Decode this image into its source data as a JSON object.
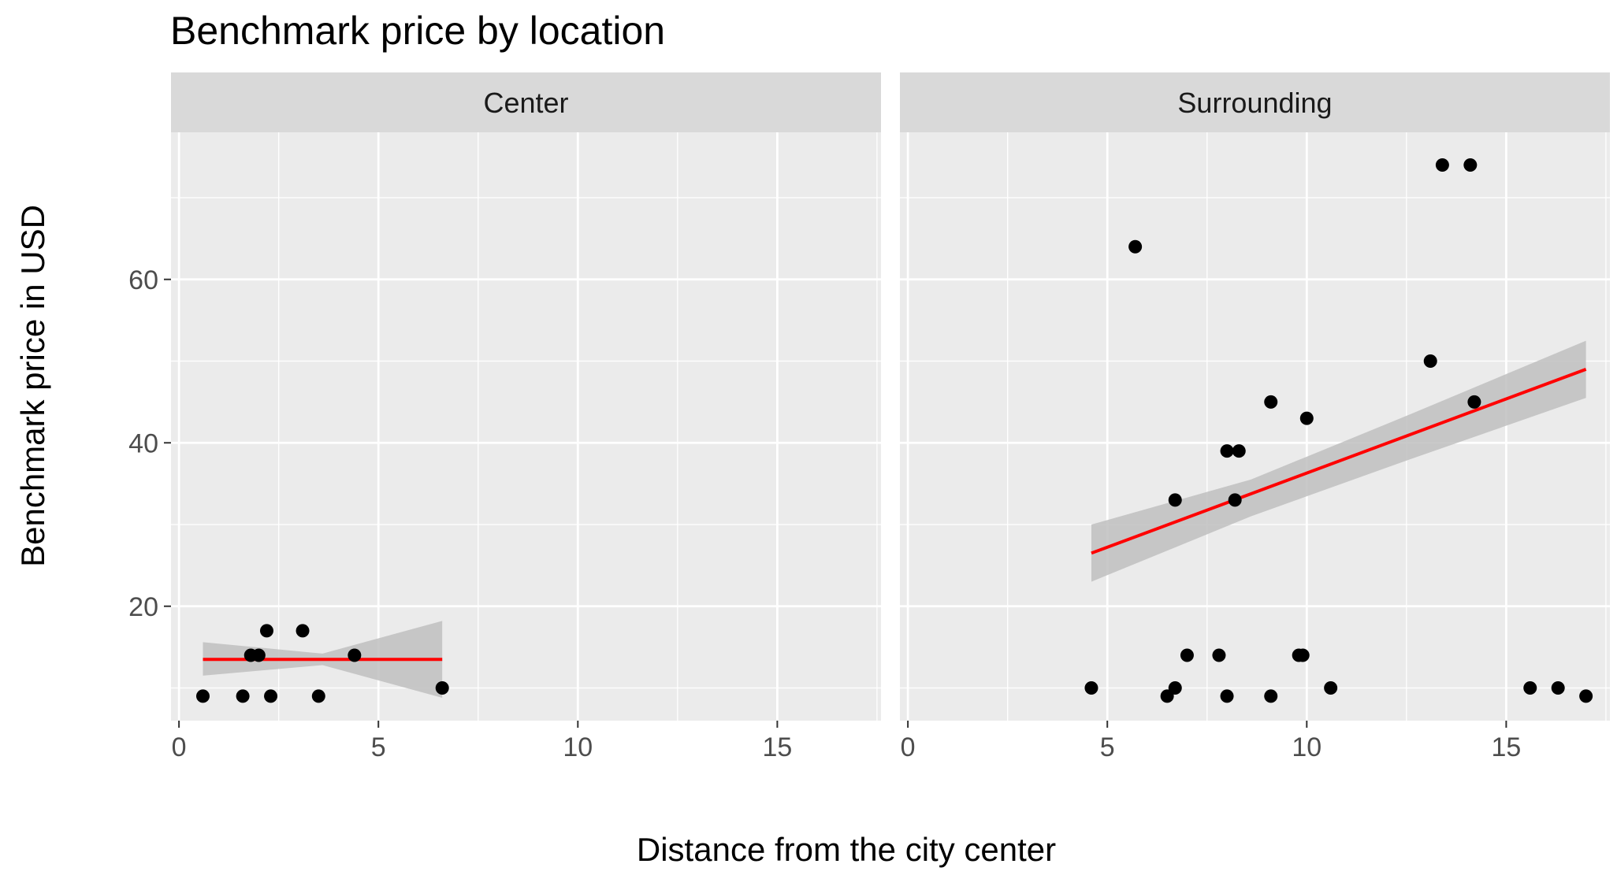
{
  "chart_data": {
    "type": "scatter",
    "title": "Benchmark price by location",
    "xlabel": "Distance from the city center",
    "ylabel": "Benchmark price in USD",
    "xlim": [
      -0.2,
      17.6
    ],
    "ylim": [
      6.0,
      78.0
    ],
    "x_ticks": [
      0,
      5,
      10,
      15
    ],
    "y_ticks": [
      20,
      40,
      60
    ],
    "grid": true,
    "legend": "none",
    "colors": {
      "panel_bg": "#ebebeb",
      "strip_bg": "#d9d9d9",
      "grid": "#ffffff",
      "point": "#000000",
      "fit_line": "#ff0000",
      "ci_band": "#bfbfbf"
    },
    "facets": [
      {
        "label": "Center",
        "points": [
          {
            "x": 0.6,
            "y": 9
          },
          {
            "x": 1.6,
            "y": 9
          },
          {
            "x": 1.8,
            "y": 14
          },
          {
            "x": 2.0,
            "y": 14
          },
          {
            "x": 2.2,
            "y": 17
          },
          {
            "x": 2.3,
            "y": 9
          },
          {
            "x": 3.1,
            "y": 17
          },
          {
            "x": 3.5,
            "y": 9
          },
          {
            "x": 4.4,
            "y": 14
          },
          {
            "x": 6.6,
            "y": 10
          }
        ],
        "fit": {
          "x": [
            0.6,
            6.6
          ],
          "y": [
            13.5,
            13.5
          ]
        },
        "ci": {
          "x": [
            0.6,
            3.6,
            6.6
          ],
          "lower": [
            11.5,
            12.8,
            8.8
          ],
          "upper": [
            15.6,
            14.2,
            18.2
          ]
        }
      },
      {
        "label": "Surrounding",
        "points": [
          {
            "x": 4.6,
            "y": 10
          },
          {
            "x": 5.7,
            "y": 64
          },
          {
            "x": 6.5,
            "y": 9
          },
          {
            "x": 6.7,
            "y": 10
          },
          {
            "x": 6.7,
            "y": 33
          },
          {
            "x": 7.0,
            "y": 14
          },
          {
            "x": 7.8,
            "y": 14
          },
          {
            "x": 8.0,
            "y": 39
          },
          {
            "x": 8.0,
            "y": 9
          },
          {
            "x": 8.2,
            "y": 33
          },
          {
            "x": 8.3,
            "y": 39
          },
          {
            "x": 9.1,
            "y": 45
          },
          {
            "x": 9.1,
            "y": 9
          },
          {
            "x": 9.8,
            "y": 14
          },
          {
            "x": 9.9,
            "y": 14
          },
          {
            "x": 10.0,
            "y": 43
          },
          {
            "x": 10.6,
            "y": 10
          },
          {
            "x": 13.1,
            "y": 50
          },
          {
            "x": 13.4,
            "y": 74
          },
          {
            "x": 14.1,
            "y": 74
          },
          {
            "x": 14.2,
            "y": 45
          },
          {
            "x": 15.6,
            "y": 10
          },
          {
            "x": 16.3,
            "y": 10
          },
          {
            "x": 17.0,
            "y": 9
          }
        ],
        "fit": {
          "x": [
            4.6,
            17.0
          ],
          "y": [
            26.5,
            49.0
          ]
        },
        "ci": {
          "x": [
            4.6,
            8.6,
            12.6,
            17.0
          ],
          "lower": [
            23.0,
            31.0,
            38.0,
            45.5
          ],
          "upper": [
            30.0,
            35.5,
            43.5,
            52.5
          ]
        }
      }
    ]
  }
}
